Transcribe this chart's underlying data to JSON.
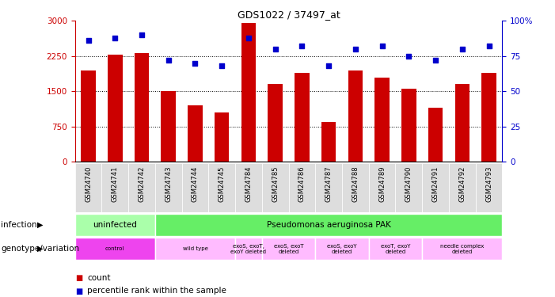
{
  "title": "GDS1022 / 37497_at",
  "samples": [
    "GSM24740",
    "GSM24741",
    "GSM24742",
    "GSM24743",
    "GSM24744",
    "GSM24745",
    "GSM24784",
    "GSM24785",
    "GSM24786",
    "GSM24787",
    "GSM24788",
    "GSM24789",
    "GSM24790",
    "GSM24791",
    "GSM24792",
    "GSM24793"
  ],
  "counts": [
    1950,
    2280,
    2320,
    1500,
    1200,
    1050,
    2950,
    1650,
    1900,
    850,
    1950,
    1800,
    1550,
    1150,
    1650,
    1900
  ],
  "percentiles": [
    86,
    88,
    90,
    72,
    70,
    68,
    88,
    80,
    82,
    68,
    80,
    82,
    75,
    72,
    80,
    82
  ],
  "bar_color": "#cc0000",
  "dot_color": "#0000cc",
  "ylim_left": [
    0,
    3000
  ],
  "ylim_right": [
    0,
    100
  ],
  "yticks_left": [
    0,
    750,
    1500,
    2250,
    3000
  ],
  "yticks_right": [
    0,
    25,
    50,
    75,
    100
  ],
  "yticklabels_right": [
    "0",
    "25",
    "50",
    "75",
    "100%"
  ],
  "grid_values": [
    750,
    1500,
    2250
  ],
  "infection_row": {
    "uninfected_cols": [
      0,
      1,
      2
    ],
    "pak_cols": [
      3,
      4,
      5,
      6,
      7,
      8,
      9,
      10,
      11,
      12,
      13,
      14,
      15
    ],
    "uninfected_label": "uninfected",
    "pak_label": "Pseudomonas aeruginosa PAK",
    "uninfected_color": "#aaffaa",
    "pak_color": "#66ee66"
  },
  "genotype_row": {
    "groups": [
      {
        "cols": [
          0,
          1,
          2
        ],
        "label": "control",
        "color": "#ee44ee"
      },
      {
        "cols": [
          3,
          4,
          5
        ],
        "label": "wild type",
        "color": "#ffbbff"
      },
      {
        "cols": [
          6
        ],
        "label": "exoS, exoT,\nexoY deleted",
        "color": "#ffbbff"
      },
      {
        "cols": [
          7,
          8
        ],
        "label": "exoS, exoT\ndeleted",
        "color": "#ffbbff"
      },
      {
        "cols": [
          9,
          10
        ],
        "label": "exoS, exoY\ndeleted",
        "color": "#ffbbff"
      },
      {
        "cols": [
          11,
          12
        ],
        "label": "exoT, exoY\ndeleted",
        "color": "#ffbbff"
      },
      {
        "cols": [
          13,
          14,
          15
        ],
        "label": "needle complex\ndeleted",
        "color": "#ffbbff"
      }
    ]
  },
  "left_label_infection": "infection",
  "left_label_genotype": "genotype/variation",
  "legend_count_color": "#cc0000",
  "legend_dot_color": "#0000cc",
  "legend_count_label": "count",
  "legend_dot_label": "percentile rank within the sample",
  "bg_color": "#ffffff"
}
